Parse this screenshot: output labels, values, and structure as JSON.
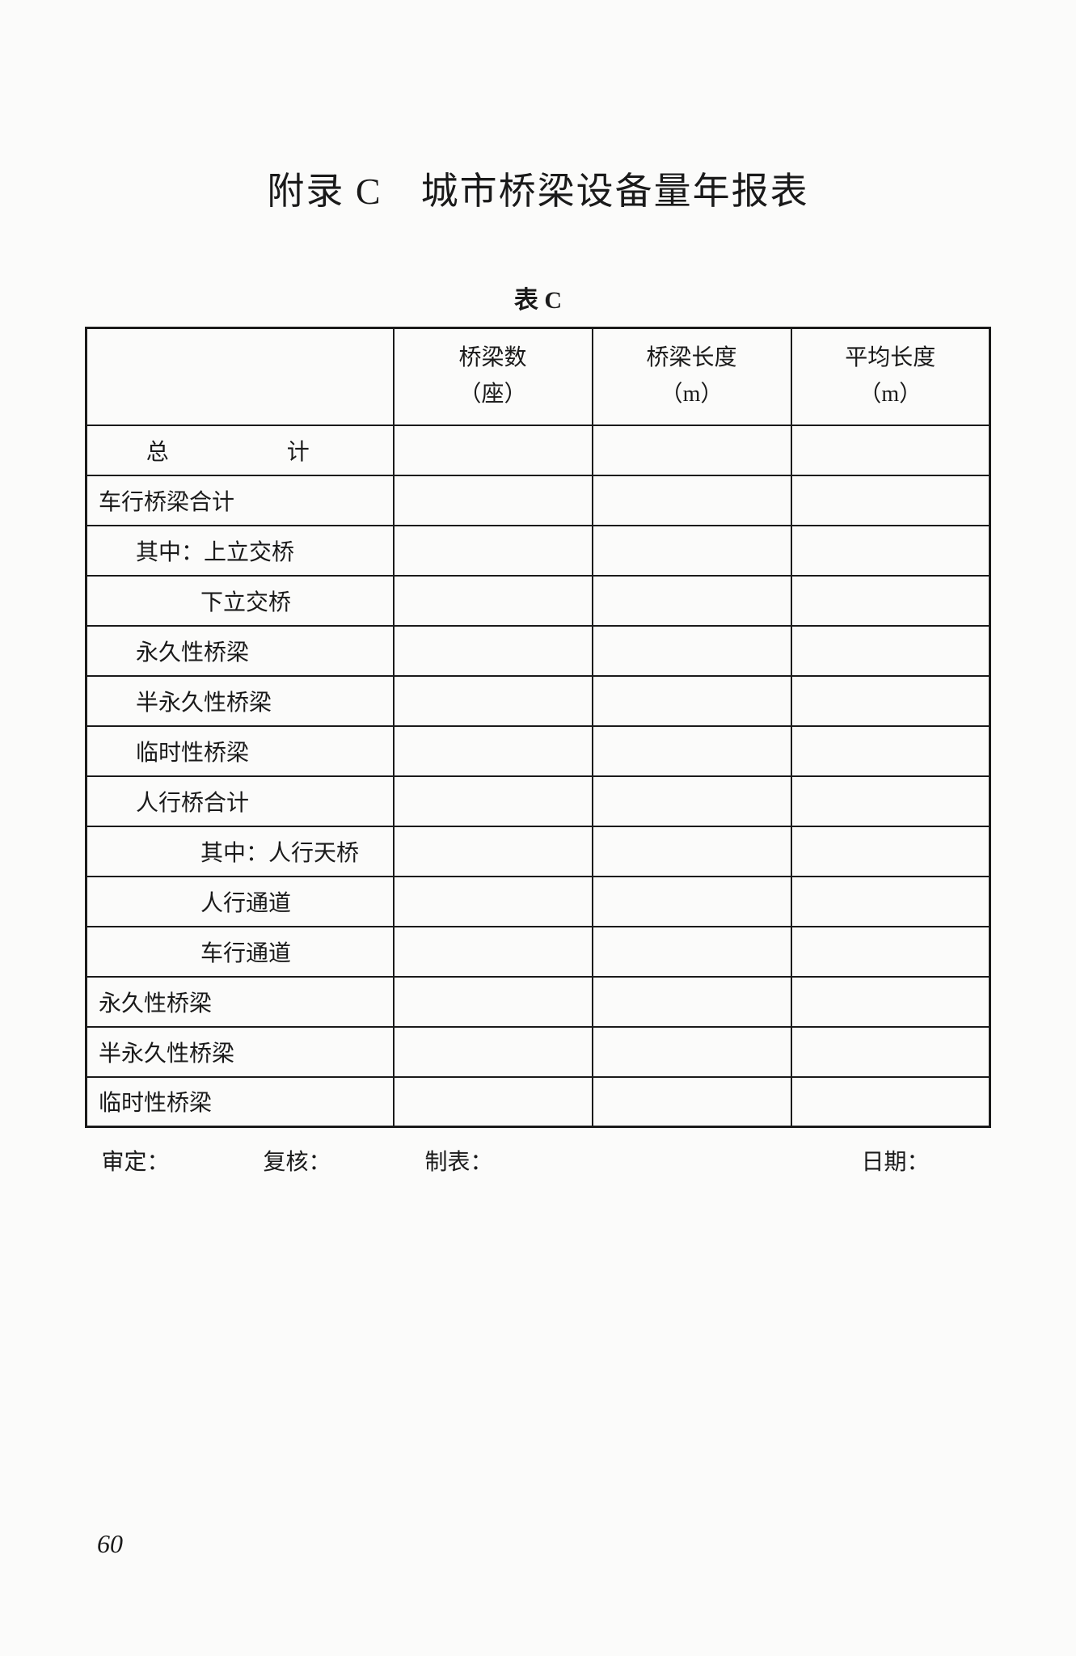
{
  "title": "附录 C　城市桥梁设备量年报表",
  "subtitle": "表 C",
  "columns": [
    {
      "line1": "桥梁数",
      "line2": "（座）"
    },
    {
      "line1": "桥梁长度",
      "line2": "（m）"
    },
    {
      "line1": "平均长度",
      "line2": "（m）"
    }
  ],
  "rows": [
    {
      "label": "总　　计",
      "align": "center",
      "indent": 0,
      "spaced": true
    },
    {
      "label": "车行桥梁合计",
      "align": "left",
      "indent": 0,
      "spaced": false
    },
    {
      "label": "其中：上立交桥",
      "align": "left",
      "indent": 1,
      "spaced": false
    },
    {
      "label": "下立交桥",
      "align": "left",
      "indent": 2,
      "spaced": false
    },
    {
      "label": "永久性桥梁",
      "align": "left",
      "indent": 1,
      "spaced": false
    },
    {
      "label": "半永久性桥梁",
      "align": "left",
      "indent": 1,
      "spaced": false
    },
    {
      "label": "临时性桥梁",
      "align": "left",
      "indent": 1,
      "spaced": false
    },
    {
      "label": "人行桥合计",
      "align": "left",
      "indent": 1,
      "spaced": false
    },
    {
      "label": "其中：人行天桥",
      "align": "left",
      "indent": 2,
      "spaced": false
    },
    {
      "label": "人行通道",
      "align": "left",
      "indent": 2,
      "spaced": false
    },
    {
      "label": "车行通道",
      "align": "left",
      "indent": 2,
      "spaced": false
    },
    {
      "label": "永久性桥梁",
      "align": "left",
      "indent": 0,
      "spaced": false
    },
    {
      "label": "半永久性桥梁",
      "align": "left",
      "indent": 0,
      "spaced": false
    },
    {
      "label": "临时性桥梁",
      "align": "left",
      "indent": 0,
      "spaced": false
    }
  ],
  "footer": {
    "approve": "审定：",
    "review": "复核：",
    "prepare": "制表：",
    "date": "日期："
  },
  "page_number": "60"
}
